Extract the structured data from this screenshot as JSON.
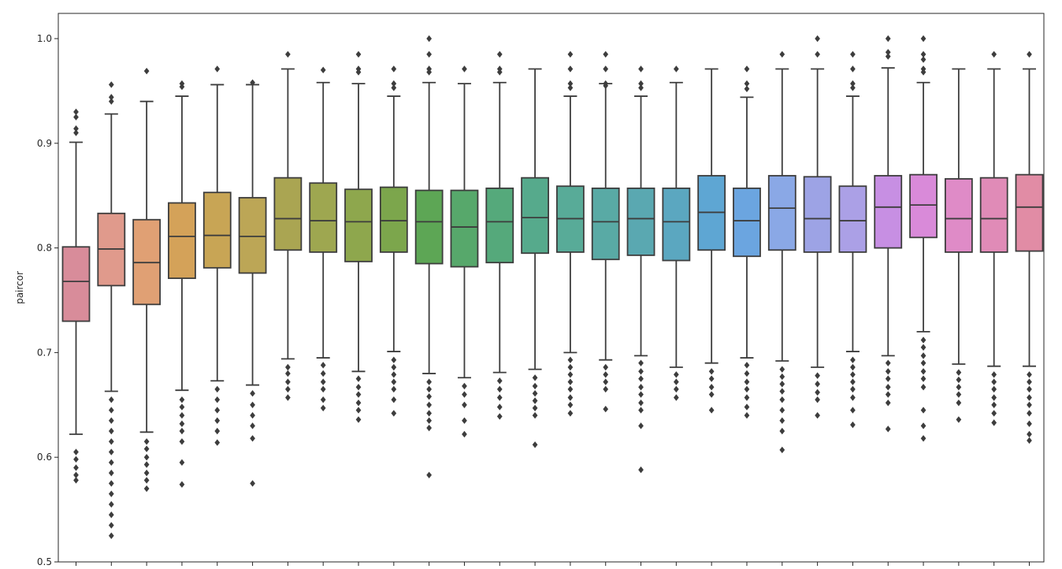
{
  "chart_data": {
    "type": "box",
    "title": "",
    "xlabel": "",
    "ylabel": "paircor",
    "ylim": [
      0.5,
      1.0
    ],
    "yticks": [
      0.5,
      0.6,
      0.7,
      0.8,
      0.9,
      1.0
    ],
    "ytick_labels": [
      "0.5",
      "0.6",
      "0.7",
      "0.8",
      "0.9",
      "1.0"
    ],
    "grid": false,
    "legend": "none",
    "boxes": [
      {
        "color": "#d88c9a",
        "whislo": 0.622,
        "q1": 0.73,
        "median": 0.768,
        "q3": 0.801,
        "whishi": 0.901,
        "outliers": [
          0.93,
          0.925,
          0.914,
          0.91,
          0.605,
          0.598,
          0.59,
          0.583,
          0.578
        ]
      },
      {
        "color": "#e09a8c",
        "whislo": 0.663,
        "q1": 0.764,
        "median": 0.799,
        "q3": 0.833,
        "whishi": 0.928,
        "outliers": [
          0.956,
          0.944,
          0.94,
          0.655,
          0.645,
          0.635,
          0.625,
          0.615,
          0.605,
          0.595,
          0.585,
          0.575,
          0.565,
          0.555,
          0.545,
          0.535,
          0.525
        ]
      },
      {
        "color": "#e0a074",
        "whislo": 0.624,
        "q1": 0.746,
        "median": 0.786,
        "q3": 0.827,
        "whishi": 0.94,
        "outliers": [
          0.969,
          0.615,
          0.608,
          0.6,
          0.593,
          0.585,
          0.578,
          0.57
        ]
      },
      {
        "color": "#d4a259",
        "whislo": 0.664,
        "q1": 0.771,
        "median": 0.811,
        "q3": 0.843,
        "whishi": 0.945,
        "outliers": [
          0.957,
          0.954,
          0.655,
          0.648,
          0.64,
          0.632,
          0.625,
          0.615,
          0.595,
          0.574
        ]
      },
      {
        "color": "#c8a555",
        "whislo": 0.673,
        "q1": 0.781,
        "median": 0.812,
        "q3": 0.853,
        "whishi": 0.956,
        "outliers": [
          0.971,
          0.665,
          0.655,
          0.645,
          0.635,
          0.625,
          0.614
        ]
      },
      {
        "color": "#bca656",
        "whislo": 0.669,
        "q1": 0.776,
        "median": 0.811,
        "q3": 0.848,
        "whishi": 0.956,
        "outliers": [
          0.958,
          0.661,
          0.65,
          0.64,
          0.63,
          0.618,
          0.575
        ]
      },
      {
        "color": "#aaa552",
        "whislo": 0.694,
        "q1": 0.798,
        "median": 0.828,
        "q3": 0.867,
        "whishi": 0.971,
        "outliers": [
          0.985,
          0.686,
          0.68,
          0.672,
          0.665,
          0.657
        ]
      },
      {
        "color": "#9ea750",
        "whislo": 0.695,
        "q1": 0.796,
        "median": 0.826,
        "q3": 0.862,
        "whishi": 0.958,
        "outliers": [
          0.97,
          0.688,
          0.68,
          0.672,
          0.665,
          0.655,
          0.647
        ]
      },
      {
        "color": "#8ea74d",
        "whislo": 0.682,
        "q1": 0.787,
        "median": 0.825,
        "q3": 0.856,
        "whishi": 0.957,
        "outliers": [
          0.985,
          0.971,
          0.968,
          0.675,
          0.667,
          0.66,
          0.652,
          0.645,
          0.636
        ]
      },
      {
        "color": "#7ca64c",
        "whislo": 0.701,
        "q1": 0.796,
        "median": 0.826,
        "q3": 0.858,
        "whishi": 0.945,
        "outliers": [
          0.971,
          0.957,
          0.953,
          0.693,
          0.686,
          0.679,
          0.672,
          0.665,
          0.655,
          0.642
        ]
      },
      {
        "color": "#5da655",
        "whislo": 0.68,
        "q1": 0.785,
        "median": 0.825,
        "q3": 0.855,
        "whishi": 0.958,
        "outliers": [
          1.0,
          0.985,
          0.971,
          0.968,
          0.672,
          0.665,
          0.658,
          0.65,
          0.642,
          0.635,
          0.628,
          0.583
        ]
      },
      {
        "color": "#57a86b",
        "whislo": 0.676,
        "q1": 0.782,
        "median": 0.82,
        "q3": 0.855,
        "whishi": 0.957,
        "outliers": [
          0.971,
          0.668,
          0.66,
          0.65,
          0.635,
          0.622
        ]
      },
      {
        "color": "#55a97b",
        "whislo": 0.681,
        "q1": 0.786,
        "median": 0.825,
        "q3": 0.857,
        "whishi": 0.958,
        "outliers": [
          0.985,
          0.971,
          0.968,
          0.673,
          0.665,
          0.657,
          0.648,
          0.639
        ]
      },
      {
        "color": "#56aa8c",
        "whislo": 0.684,
        "q1": 0.795,
        "median": 0.829,
        "q3": 0.867,
        "whishi": 0.971,
        "outliers": [
          0.676,
          0.668,
          0.661,
          0.654,
          0.647,
          0.64,
          0.612
        ]
      },
      {
        "color": "#58ab98",
        "whislo": 0.7,
        "q1": 0.796,
        "median": 0.828,
        "q3": 0.859,
        "whishi": 0.945,
        "outliers": [
          0.985,
          0.971,
          0.957,
          0.953,
          0.693,
          0.686,
          0.679,
          0.672,
          0.665,
          0.657,
          0.65,
          0.642
        ]
      },
      {
        "color": "#59aaa5",
        "whislo": 0.693,
        "q1": 0.789,
        "median": 0.825,
        "q3": 0.857,
        "whishi": 0.957,
        "outliers": [
          0.985,
          0.971,
          0.957,
          0.955,
          0.686,
          0.679,
          0.672,
          0.665,
          0.646
        ]
      },
      {
        "color": "#5aa8b1",
        "whislo": 0.697,
        "q1": 0.793,
        "median": 0.828,
        "q3": 0.857,
        "whishi": 0.945,
        "outliers": [
          0.971,
          0.957,
          0.953,
          0.69,
          0.682,
          0.675,
          0.667,
          0.66,
          0.652,
          0.645,
          0.63,
          0.588
        ]
      },
      {
        "color": "#5ba7c0",
        "whislo": 0.686,
        "q1": 0.788,
        "median": 0.825,
        "q3": 0.857,
        "whishi": 0.958,
        "outliers": [
          0.971,
          0.679,
          0.672,
          0.665,
          0.657
        ]
      },
      {
        "color": "#5ea6d3",
        "whislo": 0.69,
        "q1": 0.798,
        "median": 0.834,
        "q3": 0.869,
        "whishi": 0.971,
        "outliers": [
          0.682,
          0.675,
          0.667,
          0.66,
          0.645
        ]
      },
      {
        "color": "#6ba5e0",
        "whislo": 0.695,
        "q1": 0.792,
        "median": 0.826,
        "q3": 0.857,
        "whishi": 0.944,
        "outliers": [
          0.971,
          0.957,
          0.952,
          0.688,
          0.68,
          0.672,
          0.665,
          0.657,
          0.648,
          0.64
        ]
      },
      {
        "color": "#8aa8e6",
        "whislo": 0.692,
        "q1": 0.798,
        "median": 0.838,
        "q3": 0.869,
        "whishi": 0.971,
        "outliers": [
          0.985,
          0.684,
          0.677,
          0.67,
          0.663,
          0.655,
          0.645,
          0.635,
          0.625,
          0.607
        ]
      },
      {
        "color": "#9da3e5",
        "whislo": 0.686,
        "q1": 0.796,
        "median": 0.828,
        "q3": 0.868,
        "whishi": 0.971,
        "outliers": [
          1.0,
          0.985,
          0.678,
          0.67,
          0.662,
          0.655,
          0.64
        ]
      },
      {
        "color": "#aba0e6",
        "whislo": 0.701,
        "q1": 0.796,
        "median": 0.826,
        "q3": 0.859,
        "whishi": 0.945,
        "outliers": [
          0.985,
          0.971,
          0.957,
          0.953,
          0.693,
          0.686,
          0.679,
          0.672,
          0.665,
          0.657,
          0.645,
          0.631
        ]
      },
      {
        "color": "#c78fe3",
        "whislo": 0.697,
        "q1": 0.8,
        "median": 0.839,
        "q3": 0.869,
        "whishi": 0.972,
        "outliers": [
          1.0,
          0.987,
          0.983,
          0.69,
          0.682,
          0.675,
          0.667,
          0.66,
          0.652,
          0.627
        ]
      },
      {
        "color": "#d98ad9",
        "whislo": 0.72,
        "q1": 0.81,
        "median": 0.841,
        "q3": 0.87,
        "whishi": 0.958,
        "outliers": [
          1.0,
          0.985,
          0.98,
          0.971,
          0.968,
          0.712,
          0.705,
          0.697,
          0.69,
          0.682,
          0.675,
          0.667,
          0.645,
          0.63,
          0.618
        ]
      },
      {
        "color": "#df8bc7",
        "whislo": 0.689,
        "q1": 0.796,
        "median": 0.828,
        "q3": 0.866,
        "whishi": 0.971,
        "outliers": [
          0.681,
          0.674,
          0.667,
          0.66,
          0.652,
          0.636
        ]
      },
      {
        "color": "#e08bb7",
        "whislo": 0.687,
        "q1": 0.796,
        "median": 0.828,
        "q3": 0.867,
        "whishi": 0.971,
        "outliers": [
          0.985,
          0.679,
          0.672,
          0.665,
          0.657,
          0.65,
          0.642,
          0.633
        ]
      },
      {
        "color": "#e18ca5",
        "whislo": 0.687,
        "q1": 0.797,
        "median": 0.839,
        "q3": 0.87,
        "whishi": 0.971,
        "outliers": [
          0.985,
          0.679,
          0.672,
          0.665,
          0.657,
          0.65,
          0.642,
          0.632,
          0.622,
          0.616
        ]
      }
    ]
  }
}
